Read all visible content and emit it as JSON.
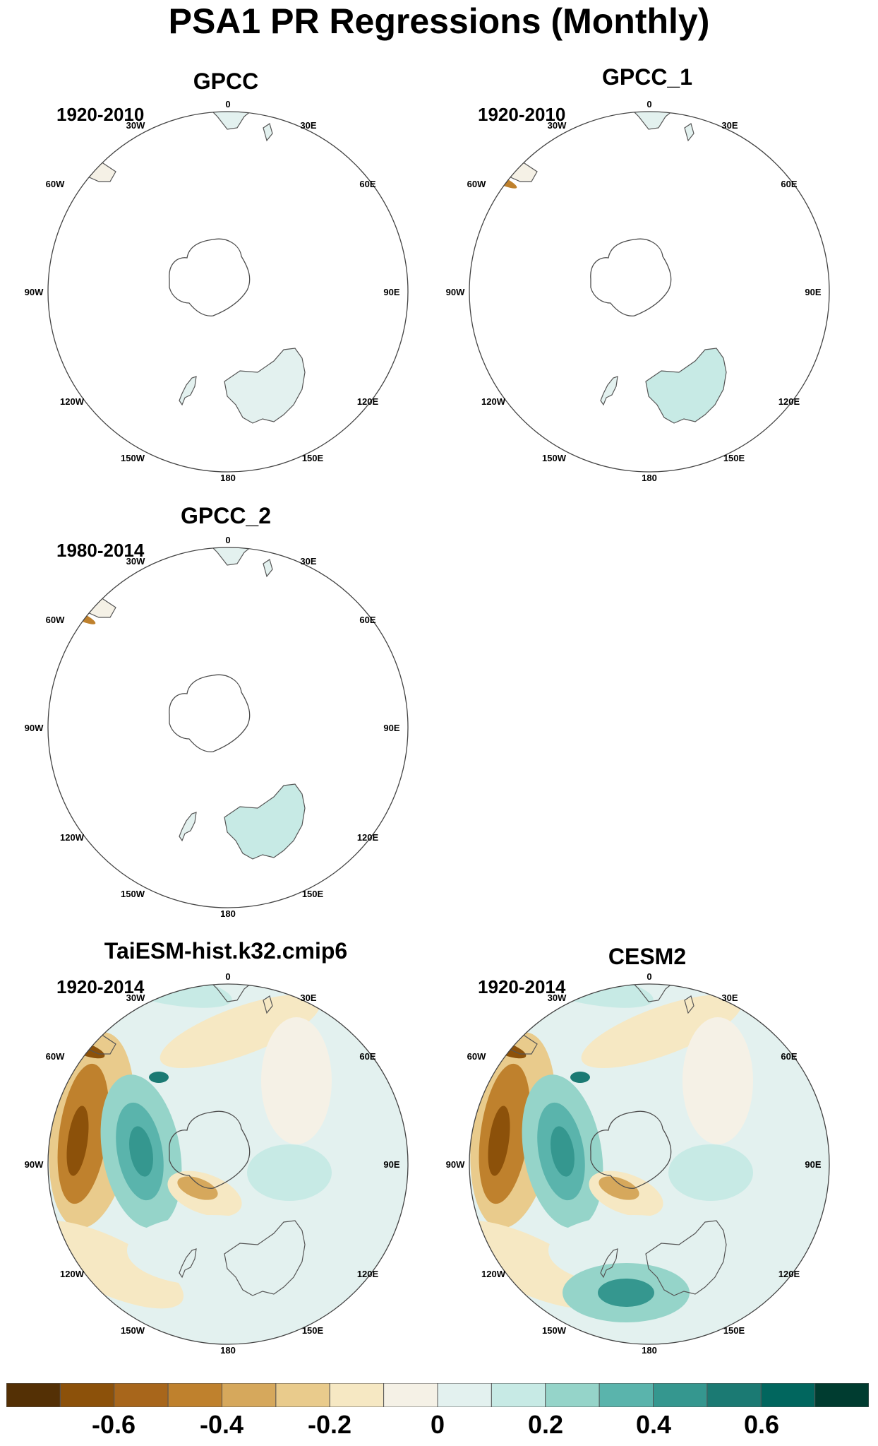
{
  "title": "PSA1 PR Regressions (Monthly)",
  "lon_labels": {
    "0": "0",
    "30E": "30E",
    "60E": "60E",
    "90E": "90E",
    "120E": "120E",
    "150E": "150E",
    "180": "180",
    "150W": "150W",
    "120W": "120W",
    "90W": "90W",
    "60W": "60W",
    "30W": "30W"
  },
  "panels": [
    {
      "id": "gpcc",
      "title": "GPCC",
      "years": "1920-2010",
      "field": "obs_full"
    },
    {
      "id": "gpcc1",
      "title": "GPCC_1",
      "years": "1920-2010",
      "field": "obs_alt"
    },
    {
      "id": "gpcc2",
      "title": "GPCC_2",
      "years": "1980-2014",
      "field": "obs_recent"
    },
    {
      "id": "taiesm",
      "title": "TaiESM-hist.k32.cmip6",
      "years": "1920-2014",
      "field": "model_a"
    },
    {
      "id": "cesm2",
      "title": "CESM2",
      "years": "1920-2014",
      "field": "model_b"
    }
  ],
  "colorbar": {
    "tick_labels": [
      "-0.6",
      "-0.4",
      "-0.2",
      "0",
      "0.2",
      "0.4",
      "0.6"
    ],
    "tick_values": [
      -0.6,
      -0.4,
      -0.2,
      0,
      0.2,
      0.4,
      0.6
    ],
    "range": [
      -0.8,
      0.8
    ],
    "colors": [
      "#543005",
      "#8c510a",
      "#a8661b",
      "#bf812d",
      "#d6a85c",
      "#e9cb8c",
      "#f6e8c3",
      "#f5f1e6",
      "#e3f1ef",
      "#c7eae5",
      "#95d4c9",
      "#5ab4ac",
      "#35978f",
      "#1b7a73",
      "#01665e",
      "#003c30"
    ]
  }
}
